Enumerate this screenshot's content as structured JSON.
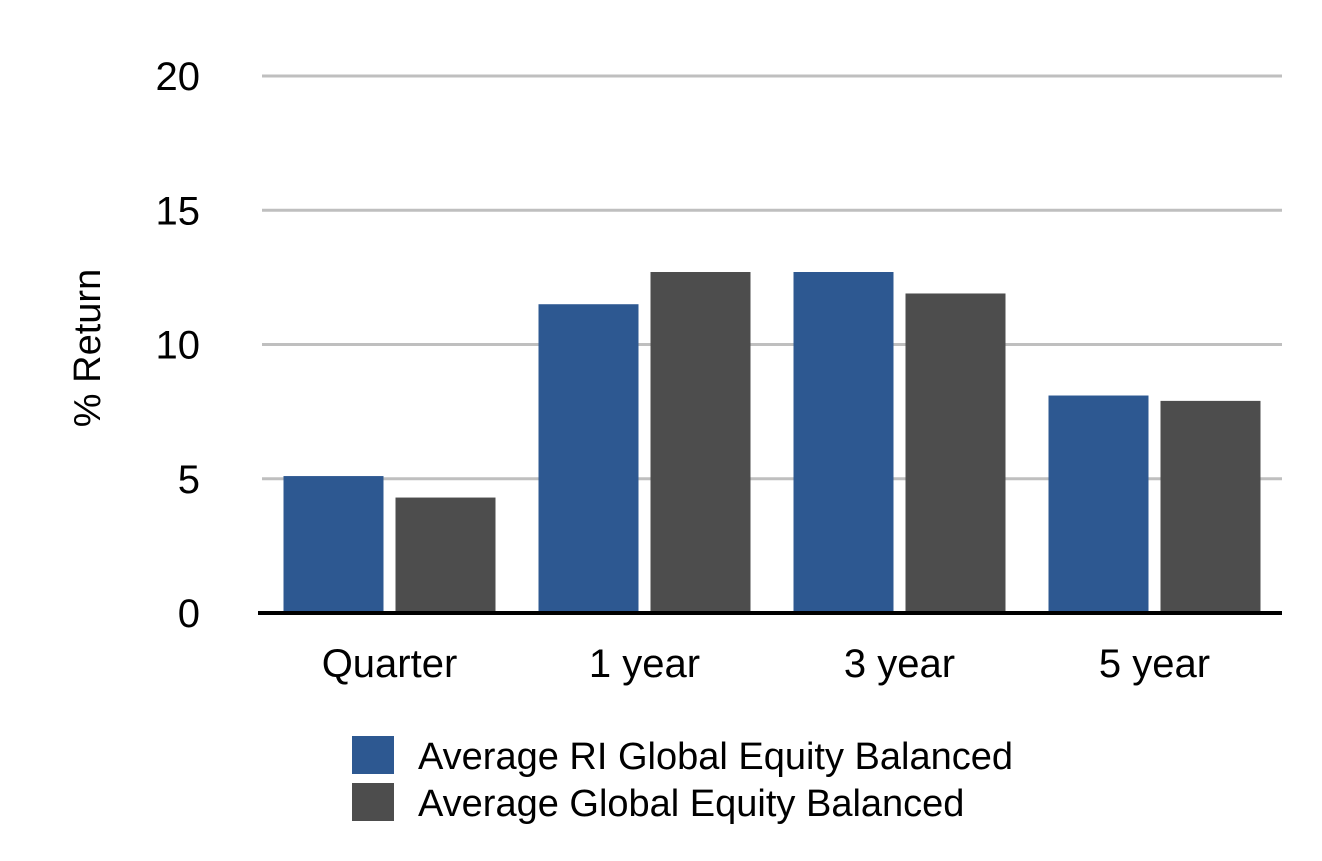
{
  "chart_data": {
    "type": "bar",
    "title": "",
    "xlabel": "",
    "ylabel": "% Return",
    "ylim": [
      0,
      20
    ],
    "yticks": [
      0,
      5,
      10,
      15,
      20
    ],
    "grid": true,
    "legend_position": "bottom",
    "categories": [
      "Quarter",
      "1 year",
      "3 year",
      "5 year"
    ],
    "series": [
      {
        "name": "Average RI Global Equity Balanced",
        "color": "#2d5891",
        "values": [
          5.1,
          11.5,
          12.7,
          8.1
        ]
      },
      {
        "name": "Average Global Equity Balanced",
        "color": "#4d4d4d",
        "values": [
          4.3,
          12.7,
          11.9,
          7.9
        ]
      }
    ]
  }
}
